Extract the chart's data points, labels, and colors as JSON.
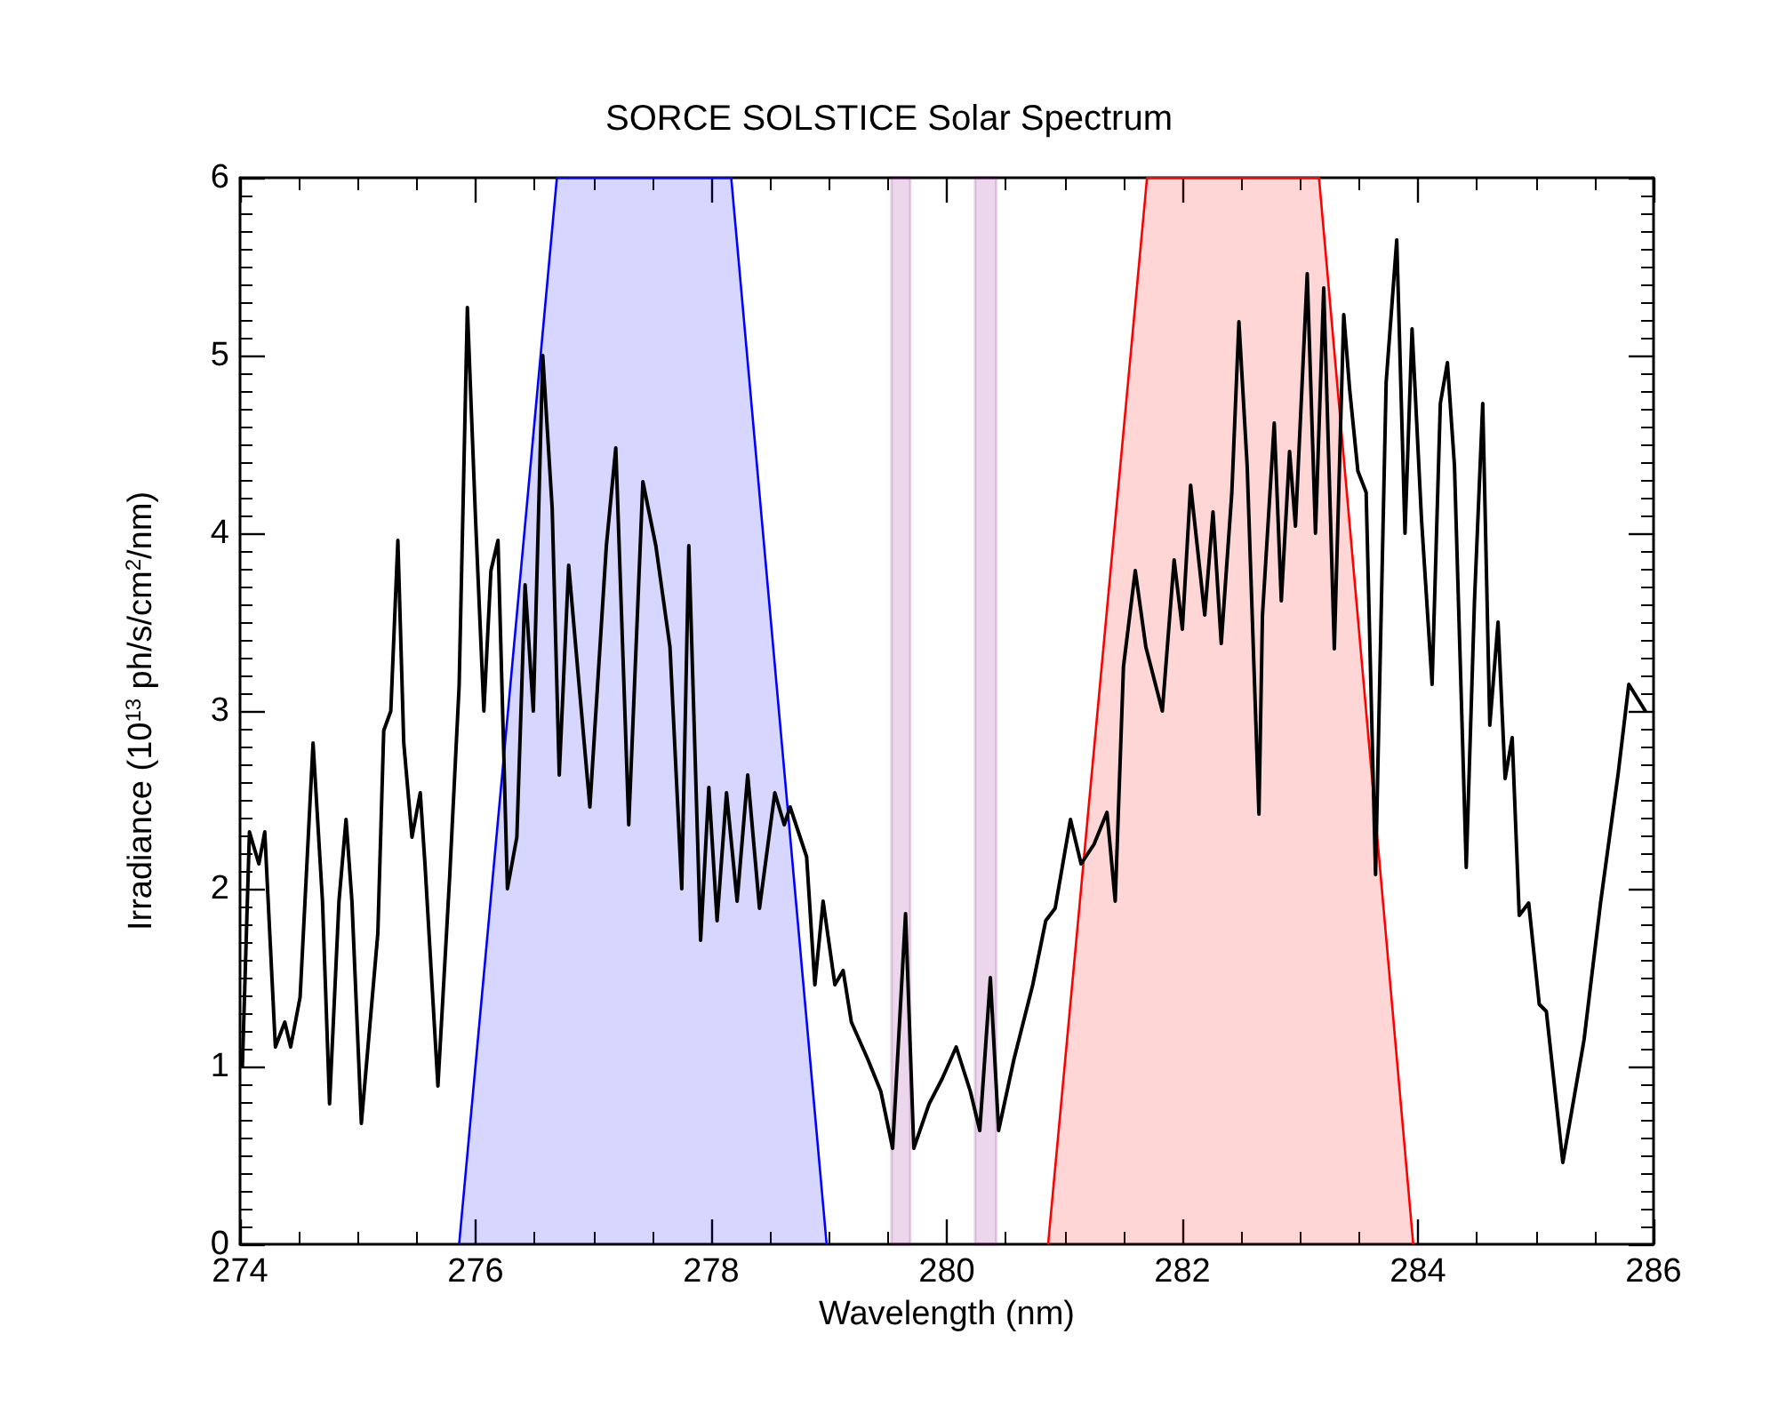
{
  "chart_data": {
    "type": "line",
    "title": "SORCE SOLSTICE Solar Spectrum",
    "xlabel": "Wavelength (nm)",
    "ylabel": "Irradiance (10$^{13}$ ph/s/cm$^{2}$/nm)",
    "xlim": [
      274,
      286
    ],
    "xticks": [
      274,
      276,
      278,
      280,
      282,
      284,
      286
    ],
    "ylim": [
      0,
      6
    ],
    "yticks": [
      0,
      1,
      2,
      3,
      4,
      5,
      6
    ],
    "grid": false,
    "marker": "none",
    "line_style": "solid",
    "series": [
      {
        "type": "area",
        "color": "#0000ff",
        "x": [
          275.86,
          276.69,
          278.17,
          278.98
        ],
        "values": [
          0,
          6,
          6,
          0
        ]
      },
      {
        "type": "area",
        "color": "#ff0000",
        "x": [
          280.86,
          281.7,
          283.16,
          283.96
        ],
        "values": [
          0,
          6,
          6,
          0
        ]
      },
      {
        "color": "#000000",
        "x": [
          274.02,
          274.08,
          274.16,
          274.21,
          274.3,
          274.38,
          274.43,
          274.51,
          274.62,
          274.7,
          274.76,
          274.84,
          274.9,
          274.95,
          275.03,
          275.17,
          275.22,
          275.28,
          275.34,
          275.39,
          275.46,
          275.53,
          275.57,
          275.68,
          275.78,
          275.86,
          275.93,
          276.0,
          276.07,
          276.13,
          276.19,
          276.27,
          276.35,
          276.42,
          276.49,
          276.57,
          276.65,
          276.71,
          276.79,
          276.87,
          276.97,
          277.11,
          277.19,
          277.3,
          277.42,
          277.53,
          277.65,
          277.75,
          277.81,
          277.91,
          277.98,
          278.05,
          278.13,
          278.22,
          278.31,
          278.41,
          278.54,
          278.62,
          278.67,
          278.81,
          278.88,
          278.95,
          279.05,
          279.12,
          279.19,
          279.33,
          279.44,
          279.54,
          279.65,
          279.72,
          279.85,
          279.96,
          280.08,
          280.2,
          280.28,
          280.37,
          280.44,
          280.57,
          280.73,
          280.84,
          280.92,
          281.05,
          281.14,
          281.25,
          281.36,
          281.43,
          281.5,
          281.6,
          281.69,
          281.83,
          281.93,
          282.0,
          282.07,
          282.19,
          282.26,
          282.33,
          282.42,
          282.48,
          282.55,
          282.65,
          282.68,
          282.78,
          282.84,
          282.91,
          282.96,
          283.06,
          283.13,
          283.2,
          283.29,
          283.37,
          283.42,
          283.49,
          283.56,
          283.64,
          283.73,
          283.82,
          283.89,
          283.95,
          284.03,
          284.12,
          284.19,
          284.25,
          284.31,
          284.41,
          284.48,
          284.55,
          284.61,
          284.68,
          284.74,
          284.8,
          284.86,
          284.94,
          285.03,
          285.09,
          285.23,
          285.41,
          285.55,
          285.7,
          285.79,
          285.93
        ],
        "values": [
          1.0,
          2.32,
          2.14,
          2.32,
          1.11,
          1.25,
          1.11,
          1.39,
          2.82,
          1.93,
          0.79,
          1.93,
          2.39,
          1.93,
          0.68,
          1.75,
          2.89,
          3.0,
          3.96,
          2.82,
          2.29,
          2.54,
          2.14,
          0.89,
          2.07,
          3.14,
          5.27,
          4.07,
          3.0,
          3.79,
          3.96,
          2.0,
          2.29,
          3.71,
          3.0,
          5.0,
          4.14,
          2.64,
          3.82,
          3.21,
          2.46,
          3.93,
          4.48,
          2.36,
          4.29,
          3.93,
          3.36,
          2.0,
          3.93,
          1.71,
          2.57,
          1.82,
          2.54,
          1.93,
          2.64,
          1.89,
          2.54,
          2.36,
          2.46,
          2.18,
          1.46,
          1.93,
          1.46,
          1.54,
          1.25,
          1.04,
          0.86,
          0.54,
          1.86,
          0.54,
          0.79,
          0.93,
          1.11,
          0.86,
          0.64,
          1.5,
          0.64,
          1.04,
          1.46,
          1.82,
          1.89,
          2.39,
          2.14,
          2.25,
          2.43,
          1.93,
          3.25,
          3.79,
          3.36,
          3.0,
          3.85,
          3.46,
          4.27,
          3.54,
          4.12,
          3.38,
          4.23,
          5.19,
          4.38,
          2.42,
          3.54,
          4.62,
          3.62,
          4.46,
          4.04,
          5.46,
          4.0,
          5.38,
          3.35,
          5.23,
          4.81,
          4.35,
          4.23,
          2.08,
          4.85,
          5.65,
          4.0,
          5.15,
          4.08,
          3.15,
          4.73,
          4.96,
          4.38,
          2.12,
          3.62,
          4.73,
          2.92,
          3.5,
          2.62,
          2.85,
          1.85,
          1.92,
          1.35,
          1.31,
          0.46,
          1.15,
          1.92,
          2.65,
          3.15,
          3.0
        ]
      }
    ],
    "bands": [
      {
        "axis": "x",
        "from": 279.53,
        "to": 279.69,
        "color": "#800080"
      },
      {
        "axis": "x",
        "from": 280.24,
        "to": 280.42,
        "color": "#800080"
      }
    ]
  }
}
